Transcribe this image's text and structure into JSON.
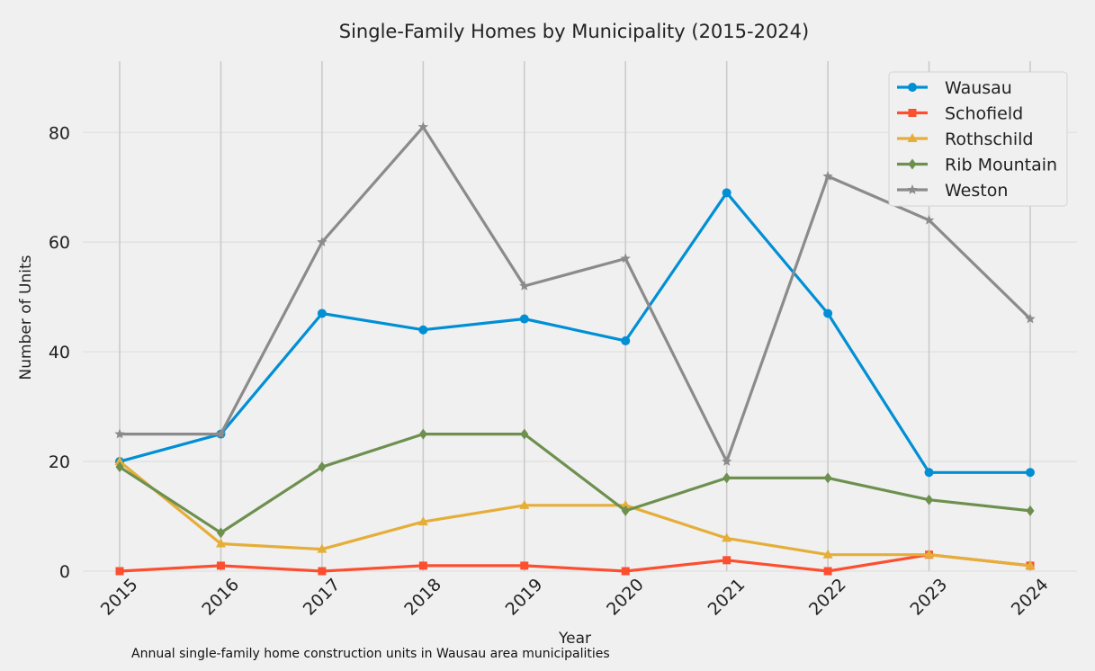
{
  "chart_data": {
    "type": "line",
    "title": "Single-Family Homes by Municipality (2015-2024)",
    "xlabel": "Year",
    "ylabel": "Number of Units",
    "caption": "Annual single-family home construction units in Wausau area municipalities",
    "x": [
      2015,
      2016,
      2017,
      2018,
      2019,
      2020,
      2021,
      2022,
      2023,
      2024
    ],
    "x_tick_labels": [
      "2015",
      "2016",
      "2017",
      "2018",
      "2019",
      "2020",
      "2021",
      "2022",
      "2023",
      "2024"
    ],
    "y_ticks": [
      0,
      20,
      40,
      60,
      80
    ],
    "y_tick_labels": [
      "0",
      "20",
      "40",
      "60",
      "80"
    ],
    "ylim": [
      0,
      93
    ],
    "grid": true,
    "legend_position": "top-right",
    "series": [
      {
        "name": "Wausau",
        "color": "#008fd5",
        "marker": "circle",
        "values": [
          20,
          25,
          47,
          44,
          46,
          42,
          69,
          47,
          18,
          18
        ]
      },
      {
        "name": "Schofield",
        "color": "#fc4f30",
        "marker": "square",
        "values": [
          0,
          1,
          0,
          1,
          1,
          0,
          2,
          0,
          3,
          1
        ]
      },
      {
        "name": "Rothschild",
        "color": "#e5ae38",
        "marker": "triangle",
        "values": [
          20,
          5,
          4,
          9,
          12,
          12,
          6,
          3,
          3,
          1
        ]
      },
      {
        "name": "Rib Mountain",
        "color": "#6d904f",
        "marker": "diamond",
        "values": [
          19,
          7,
          19,
          25,
          25,
          11,
          17,
          17,
          13,
          11
        ]
      },
      {
        "name": "Weston",
        "color": "#8b8b8b",
        "marker": "star",
        "values": [
          25,
          25,
          60,
          81,
          52,
          57,
          20,
          72,
          64,
          46
        ]
      }
    ]
  }
}
